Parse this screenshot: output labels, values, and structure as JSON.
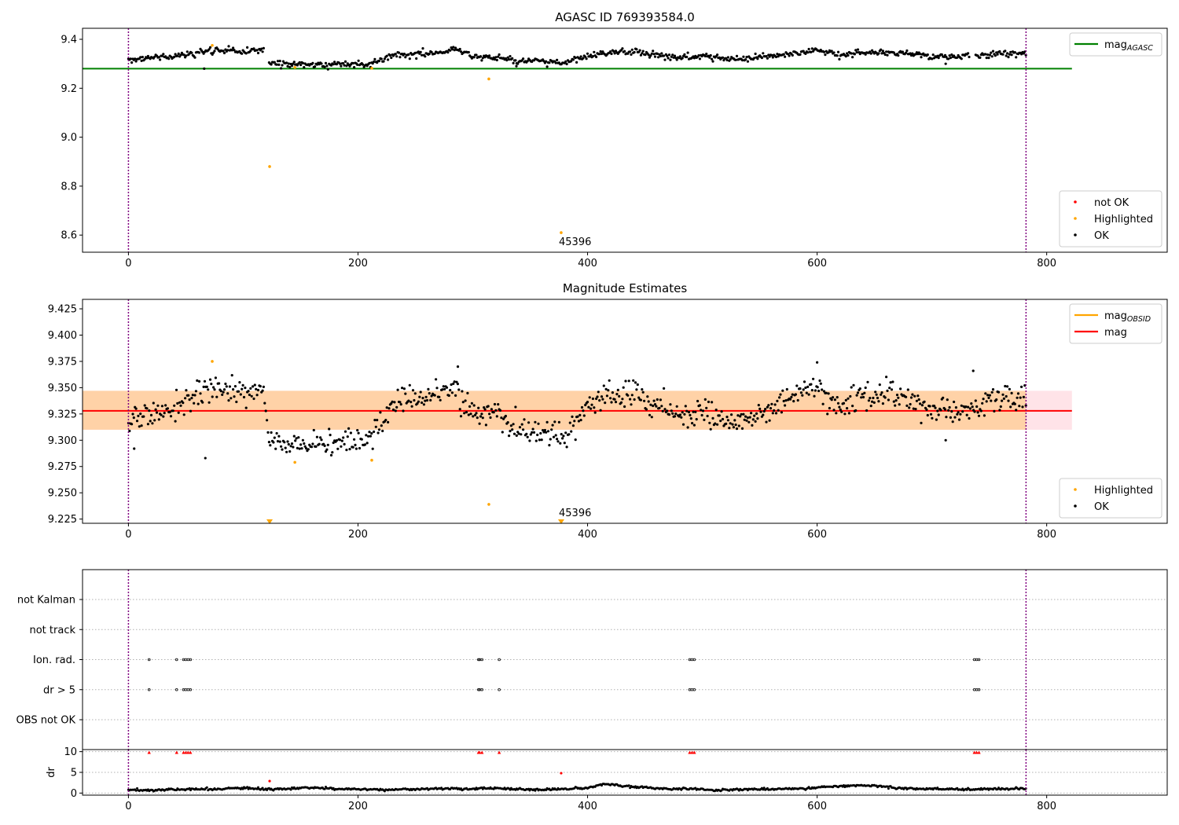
{
  "chart_data": [
    {
      "type": "scatter",
      "title": "AGASC ID 769393584.0",
      "xlim": [
        -40,
        905
      ],
      "ylim": [
        8.53,
        9.445
      ],
      "x_ticks": [
        0,
        200,
        400,
        600,
        800
      ],
      "y_ticks": [
        8.6,
        8.8,
        9.0,
        9.2,
        9.4
      ],
      "vlines": [
        0,
        782
      ],
      "hline": {
        "name": "mag_AGASC",
        "value": 9.28,
        "x_range": [
          -40,
          822
        ],
        "color": "#008000"
      },
      "ok_trend": [
        {
          "x": 0,
          "y": 9.32
        },
        {
          "x": 20,
          "y": 9.325
        },
        {
          "x": 40,
          "y": 9.33
        },
        {
          "x": 60,
          "y": 9.345
        },
        {
          "x": 80,
          "y": 9.355
        },
        {
          "x": 100,
          "y": 9.35
        },
        {
          "x": 118,
          "y": 9.355
        },
        {
          "x": 122,
          "y": 9.305
        },
        {
          "x": 145,
          "y": 9.3
        },
        {
          "x": 165,
          "y": 9.295
        },
        {
          "x": 190,
          "y": 9.3
        },
        {
          "x": 210,
          "y": 9.3
        },
        {
          "x": 230,
          "y": 9.335
        },
        {
          "x": 250,
          "y": 9.34
        },
        {
          "x": 270,
          "y": 9.345
        },
        {
          "x": 285,
          "y": 9.36
        },
        {
          "x": 300,
          "y": 9.33
        },
        {
          "x": 320,
          "y": 9.325
        },
        {
          "x": 340,
          "y": 9.31
        },
        {
          "x": 360,
          "y": 9.31
        },
        {
          "x": 380,
          "y": 9.305
        },
        {
          "x": 400,
          "y": 9.33
        },
        {
          "x": 420,
          "y": 9.345
        },
        {
          "x": 440,
          "y": 9.35
        },
        {
          "x": 460,
          "y": 9.335
        },
        {
          "x": 480,
          "y": 9.325
        },
        {
          "x": 500,
          "y": 9.33
        },
        {
          "x": 520,
          "y": 9.32
        },
        {
          "x": 540,
          "y": 9.32
        },
        {
          "x": 560,
          "y": 9.33
        },
        {
          "x": 580,
          "y": 9.34
        },
        {
          "x": 600,
          "y": 9.355
        },
        {
          "x": 620,
          "y": 9.335
        },
        {
          "x": 640,
          "y": 9.345
        },
        {
          "x": 660,
          "y": 9.345
        },
        {
          "x": 680,
          "y": 9.34
        },
        {
          "x": 700,
          "y": 9.33
        },
        {
          "x": 720,
          "y": 9.33
        },
        {
          "x": 735,
          "y": 9.33
        },
        {
          "x": 760,
          "y": 9.34
        },
        {
          "x": 782,
          "y": 9.345
        }
      ],
      "ok_gaps": [
        [
          118,
          122
        ],
        [
          733,
          738
        ]
      ],
      "ok_scatter": 0.012,
      "outliers": [
        {
          "x": 66,
          "y": 9.28
        },
        {
          "x": 712,
          "y": 9.3
        },
        {
          "x": 338,
          "y": 9.29
        }
      ],
      "highlighted": [
        {
          "x": 73,
          "y": 9.375
        },
        {
          "x": 123,
          "y": 8.88
        },
        {
          "x": 314,
          "y": 9.238
        },
        {
          "x": 377,
          "y": 8.61
        },
        {
          "x": 145,
          "y": 9.285
        },
        {
          "x": 212,
          "y": 9.282
        }
      ],
      "annotation": {
        "text": "45396",
        "x": 377,
        "y": 8.61
      },
      "legends": [
        {
          "position": "upper-right",
          "entries": [
            {
              "label": "mag",
              "sub": "AGASC",
              "kind": "line",
              "color": "#008000"
            }
          ]
        },
        {
          "position": "lower-right",
          "entries": [
            {
              "label": "not OK",
              "kind": "dot",
              "color": "#ff0000"
            },
            {
              "label": "Highlighted",
              "kind": "dot",
              "color": "#ffa500"
            },
            {
              "label": "OK",
              "kind": "dot",
              "color": "#000000"
            }
          ]
        }
      ]
    },
    {
      "type": "scatter",
      "title": "Magnitude Estimates",
      "xlim": [
        -40,
        905
      ],
      "ylim": [
        9.221,
        9.434
      ],
      "x_ticks": [
        0,
        200,
        400,
        600,
        800
      ],
      "y_ticks": [
        9.225,
        9.25,
        9.275,
        9.3,
        9.325,
        9.35,
        9.375,
        9.4,
        9.425
      ],
      "vlines": [
        0,
        782
      ],
      "hline": {
        "name": "mag",
        "value": 9.328,
        "x_range": [
          -40,
          822
        ],
        "color": "#ff0000"
      },
      "band_obsid": {
        "low": 9.31,
        "high": 9.347,
        "x_range": [
          -40,
          782
        ],
        "color": "#ffa500"
      },
      "band_mag": {
        "low": 9.31,
        "high": 9.347,
        "x_range": [
          -40,
          822
        ],
        "color": "#ffc0cb"
      },
      "ok_trend": [
        {
          "x": 0,
          "y": 9.32
        },
        {
          "x": 20,
          "y": 9.322
        },
        {
          "x": 40,
          "y": 9.33
        },
        {
          "x": 60,
          "y": 9.345
        },
        {
          "x": 80,
          "y": 9.352
        },
        {
          "x": 100,
          "y": 9.345
        },
        {
          "x": 118,
          "y": 9.35
        },
        {
          "x": 122,
          "y": 9.3
        },
        {
          "x": 145,
          "y": 9.298
        },
        {
          "x": 165,
          "y": 9.295
        },
        {
          "x": 190,
          "y": 9.298
        },
        {
          "x": 210,
          "y": 9.3
        },
        {
          "x": 230,
          "y": 9.335
        },
        {
          "x": 250,
          "y": 9.34
        },
        {
          "x": 270,
          "y": 9.343
        },
        {
          "x": 285,
          "y": 9.352
        },
        {
          "x": 300,
          "y": 9.325
        },
        {
          "x": 320,
          "y": 9.322
        },
        {
          "x": 340,
          "y": 9.31
        },
        {
          "x": 360,
          "y": 9.308
        },
        {
          "x": 380,
          "y": 9.305
        },
        {
          "x": 400,
          "y": 9.332
        },
        {
          "x": 420,
          "y": 9.345
        },
        {
          "x": 440,
          "y": 9.345
        },
        {
          "x": 460,
          "y": 9.332
        },
        {
          "x": 480,
          "y": 9.325
        },
        {
          "x": 500,
          "y": 9.328
        },
        {
          "x": 520,
          "y": 9.318
        },
        {
          "x": 540,
          "y": 9.32
        },
        {
          "x": 560,
          "y": 9.328
        },
        {
          "x": 580,
          "y": 9.34
        },
        {
          "x": 600,
          "y": 9.352
        },
        {
          "x": 620,
          "y": 9.335
        },
        {
          "x": 640,
          "y": 9.342
        },
        {
          "x": 660,
          "y": 9.345
        },
        {
          "x": 680,
          "y": 9.335
        },
        {
          "x": 700,
          "y": 9.33
        },
        {
          "x": 720,
          "y": 9.328
        },
        {
          "x": 735,
          "y": 9.33
        },
        {
          "x": 760,
          "y": 9.34
        },
        {
          "x": 782,
          "y": 9.342
        }
      ],
      "ok_gaps": [],
      "ok_scatter": 0.011,
      "outliers": [
        {
          "x": 5,
          "y": 9.292
        },
        {
          "x": 67,
          "y": 9.283
        },
        {
          "x": 712,
          "y": 9.3
        },
        {
          "x": 736,
          "y": 9.366
        },
        {
          "x": 600,
          "y": 9.374
        },
        {
          "x": 287,
          "y": 9.37
        }
      ],
      "highlighted": [
        {
          "x": 73,
          "y": 9.375
        },
        {
          "x": 145,
          "y": 9.279
        },
        {
          "x": 212,
          "y": 9.281
        },
        {
          "x": 314,
          "y": 9.239
        }
      ],
      "highlighted_clipped": [
        {
          "x": 123
        },
        {
          "x": 377
        }
      ],
      "annotation": {
        "text": "45396",
        "x": 377,
        "y": 9.227
      },
      "legends": [
        {
          "position": "upper-right",
          "entries": [
            {
              "label": "mag",
              "sub": "OBSID",
              "kind": "line",
              "color": "#ffa500"
            },
            {
              "label": "mag",
              "kind": "line",
              "color": "#ff0000"
            }
          ]
        },
        {
          "position": "lower-right",
          "entries": [
            {
              "label": "Highlighted",
              "kind": "dot",
              "color": "#ffa500"
            },
            {
              "label": "OK",
              "kind": "dot",
              "color": "#000000"
            }
          ]
        }
      ]
    },
    {
      "type": "scatter",
      "title": "",
      "xlim": [
        -40,
        905
      ],
      "categories": [
        "not Kalman",
        "not track",
        "Ion. rad.",
        "dr > 5",
        "OBS not OK"
      ],
      "flags": {
        "Ion. rad.": [
          18,
          42,
          48,
          50,
          52,
          54,
          305,
          306,
          308,
          323,
          489,
          491,
          493,
          737,
          739,
          741
        ],
        "dr > 5": [
          18,
          42,
          48,
          50,
          52,
          54,
          305,
          306,
          308,
          323,
          489,
          491,
          493,
          737,
          739,
          741
        ]
      },
      "vlines": [
        0,
        782
      ]
    },
    {
      "type": "scatter",
      "title": "",
      "ylabel": "dr",
      "xlim": [
        -40,
        905
      ],
      "ylim": [
        -0.5,
        10.5
      ],
      "x_ticks": [
        0,
        200,
        400,
        600,
        800
      ],
      "y_ticks": [
        0,
        5,
        10
      ],
      "vlines": [
        0,
        782
      ],
      "red_clipped_x": [
        18,
        42,
        48,
        50,
        52,
        54,
        305,
        306,
        308,
        323,
        489,
        491,
        493,
        737,
        739,
        741
      ],
      "red_points": [
        {
          "x": 123,
          "y": 2.9
        },
        {
          "x": 377,
          "y": 4.8
        }
      ],
      "dr_trend": [
        {
          "x": 0,
          "y": 0.7
        },
        {
          "x": 20,
          "y": 0.7
        },
        {
          "x": 40,
          "y": 0.9
        },
        {
          "x": 60,
          "y": 0.9
        },
        {
          "x": 80,
          "y": 1.0
        },
        {
          "x": 100,
          "y": 1.2
        },
        {
          "x": 120,
          "y": 0.9
        },
        {
          "x": 140,
          "y": 1.0
        },
        {
          "x": 160,
          "y": 1.3
        },
        {
          "x": 180,
          "y": 1.0
        },
        {
          "x": 200,
          "y": 1.0
        },
        {
          "x": 220,
          "y": 0.8
        },
        {
          "x": 240,
          "y": 0.9
        },
        {
          "x": 260,
          "y": 1.0
        },
        {
          "x": 280,
          "y": 1.1
        },
        {
          "x": 300,
          "y": 1.0
        },
        {
          "x": 320,
          "y": 1.2
        },
        {
          "x": 340,
          "y": 0.9
        },
        {
          "x": 360,
          "y": 0.8
        },
        {
          "x": 380,
          "y": 1.0
        },
        {
          "x": 400,
          "y": 1.2
        },
        {
          "x": 415,
          "y": 2.2
        },
        {
          "x": 430,
          "y": 1.7
        },
        {
          "x": 450,
          "y": 1.4
        },
        {
          "x": 470,
          "y": 1.0
        },
        {
          "x": 490,
          "y": 1.0
        },
        {
          "x": 510,
          "y": 0.7
        },
        {
          "x": 530,
          "y": 0.9
        },
        {
          "x": 550,
          "y": 0.9
        },
        {
          "x": 570,
          "y": 1.0
        },
        {
          "x": 590,
          "y": 1.1
        },
        {
          "x": 610,
          "y": 1.6
        },
        {
          "x": 630,
          "y": 1.8
        },
        {
          "x": 650,
          "y": 1.8
        },
        {
          "x": 670,
          "y": 1.2
        },
        {
          "x": 690,
          "y": 1.0
        },
        {
          "x": 710,
          "y": 1.0
        },
        {
          "x": 730,
          "y": 0.9
        },
        {
          "x": 750,
          "y": 1.0
        },
        {
          "x": 782,
          "y": 1.1
        }
      ],
      "dr_scatter": 0.25
    }
  ]
}
